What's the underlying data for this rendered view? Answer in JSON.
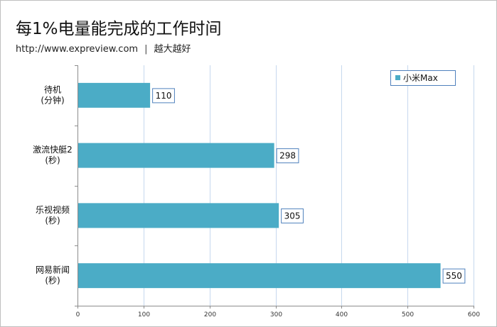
{
  "header": {
    "title": "每1%电量能完成的工作时间",
    "url": "http://www.expreview.com",
    "separator": "|",
    "tagline": "越大越好"
  },
  "colors": {
    "bar": "#4bacc6",
    "grid": "#c6d8ee",
    "axis": "#8c8c8c",
    "label_border": "#4f81bd"
  },
  "chart_data": {
    "type": "bar",
    "orientation": "horizontal",
    "categories": [
      [
        "待机",
        "(分钟)"
      ],
      [
        "激流快艇2",
        "(秒)"
      ],
      [
        "乐视视频",
        "(秒)"
      ],
      [
        "网易新闻",
        "(秒)"
      ]
    ],
    "series": [
      {
        "name": "小米Max",
        "values": [
          110,
          298,
          305,
          550
        ]
      }
    ],
    "xlim": [
      0,
      600
    ],
    "xticks": [
      0,
      100,
      200,
      300,
      400,
      500,
      600
    ],
    "grid": true,
    "legend": "top-right",
    "data_labels": true
  }
}
